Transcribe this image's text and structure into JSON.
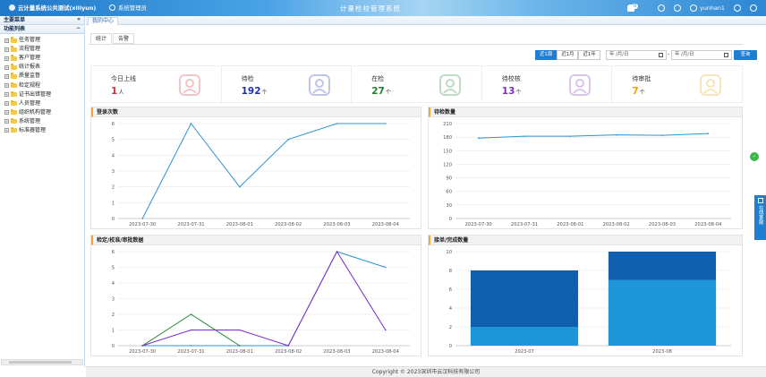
{
  "header": {
    "brand": "云计量系统公共测试(xiliyun)",
    "sys_manage": "系统管理员",
    "center_title": "计量检校管理系统",
    "notify_count": "0",
    "username": "yunhan1"
  },
  "sidebar": {
    "main_menu": "主要菜单",
    "func_list": "功能列表",
    "items": [
      "任务管理",
      "流程管理",
      "客户管理",
      "统计报表",
      "质量监督",
      "检定规程",
      "证书出错管理",
      "人员管理",
      "组织机构管理",
      "系统管理",
      "标准器管理"
    ]
  },
  "tabs": {
    "home": "我的中心"
  },
  "subtabs": [
    "统计",
    "告警"
  ],
  "filters": {
    "ranges": [
      "近1周",
      "近1月",
      "近1年"
    ],
    "active_range": "近1周",
    "start_placeholder": "年 /月/日",
    "end_placeholder": "年 /月/日",
    "separator": "-",
    "query": "查询"
  },
  "stats": [
    {
      "label": "今日上线",
      "value": "1",
      "unit": "人",
      "color": "#d8303a",
      "art": "users-icon"
    },
    {
      "label": "待检",
      "value": "192",
      "unit": "个",
      "color": "#1d2fb8",
      "art": "hourglass-icon"
    },
    {
      "label": "在检",
      "value": "27",
      "unit": "个",
      "color": "#1a7f2e",
      "art": "export-icon"
    },
    {
      "label": "待校核",
      "value": "13",
      "unit": "个",
      "color": "#7a2fb8",
      "art": "hand-check-icon"
    },
    {
      "label": "待审批",
      "value": "7",
      "unit": "个",
      "color": "#e8a20a",
      "art": "stamp-icon"
    }
  ],
  "chart_data": [
    {
      "type": "line",
      "title": "登录次数",
      "x": [
        "2023-07-30",
        "2023-07-31",
        "2023-08-01",
        "2023-08-02",
        "2023-08-03",
        "2023-08-04"
      ],
      "series": [
        {
          "values": [
            0,
            6,
            2,
            5,
            6,
            6
          ],
          "color": "#2a93d0"
        }
      ],
      "ylim": [
        0,
        6
      ],
      "yticks": [
        0,
        1,
        2,
        3,
        4,
        5,
        6
      ],
      "grid": true
    },
    {
      "type": "line",
      "title": "待检数量",
      "x": [
        "2023-07-30",
        "2023-07-31",
        "2023-08-01",
        "2023-08-02",
        "2023-08-03",
        "2023-08-04"
      ],
      "series": [
        {
          "values": [
            178,
            182,
            182,
            185,
            184,
            188
          ],
          "color": "#2a93d0"
        }
      ],
      "ylim": [
        0,
        210
      ],
      "yticks": [
        0,
        30,
        60,
        90,
        120,
        150,
        180,
        210
      ],
      "grid": true
    },
    {
      "type": "line",
      "title": "检定/校准/审批数据",
      "x": [
        "2023-07-30",
        "2023-07-31",
        "2023-08-01",
        "2023-08-02",
        "2023-08-03",
        "2023-08-04"
      ],
      "series": [
        {
          "values": [
            0,
            0,
            0,
            0,
            6,
            5
          ],
          "color": "#2a93d0"
        },
        {
          "values": [
            0,
            2,
            0,
            null,
            null,
            null
          ],
          "color": "#2b8a3e"
        },
        {
          "values": [
            0,
            1,
            1,
            0,
            6,
            1
          ],
          "color": "#7b2bc9"
        }
      ],
      "ylim": [
        0,
        6
      ],
      "yticks": [
        0,
        1,
        2,
        3,
        4,
        5,
        6
      ],
      "grid": true
    },
    {
      "type": "bar",
      "title": "接单/完成数量",
      "categories": [
        "2023-07",
        "2023-08"
      ],
      "series": [
        {
          "values": [
            8,
            10
          ],
          "color": "#0f5fae"
        },
        {
          "values": [
            2,
            7
          ],
          "color": "#1f95d9"
        }
      ],
      "ylim": [
        0,
        10
      ],
      "yticks": [
        0,
        2,
        4,
        6,
        8,
        10
      ],
      "grid": true
    }
  ],
  "float": {
    "service": "在线客服"
  },
  "footer": {
    "copyright": "Copyright © 2023深圳市云汉科技有限公司"
  }
}
